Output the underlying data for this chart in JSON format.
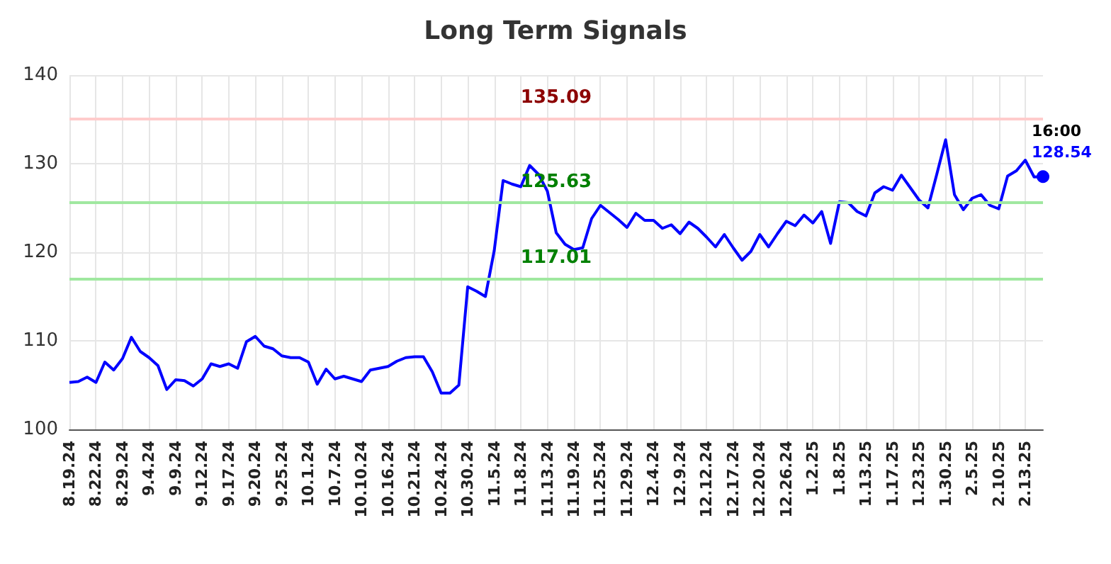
{
  "chart_data": {
    "type": "line",
    "title": "Long Term Signals",
    "categories": [
      "8.19.24",
      null,
      null,
      "8.22.24",
      null,
      null,
      "8.29.24",
      null,
      null,
      "9.4.24",
      null,
      null,
      "9.9.24",
      null,
      null,
      "9.12.24",
      null,
      null,
      "9.17.24",
      null,
      null,
      "9.20.24",
      null,
      null,
      "9.25.24",
      null,
      null,
      "10.1.24",
      null,
      null,
      "10.7.24",
      null,
      null,
      "10.10.24",
      null,
      null,
      "10.16.24",
      null,
      null,
      "10.21.24",
      null,
      null,
      "10.24.24",
      null,
      null,
      "10.30.24",
      null,
      null,
      "11.5.24",
      null,
      null,
      "11.8.24",
      null,
      null,
      "11.13.24",
      null,
      null,
      "11.19.24",
      null,
      null,
      "11.25.24",
      null,
      null,
      "11.29.24",
      null,
      null,
      "12.4.24",
      null,
      null,
      "12.9.24",
      null,
      null,
      "12.12.24",
      null,
      null,
      "12.17.24",
      null,
      null,
      "12.20.24",
      null,
      null,
      "12.26.24",
      null,
      null,
      "1.2.25",
      null,
      null,
      "1.8.25",
      null,
      null,
      "1.13.25",
      null,
      null,
      "1.17.25",
      null,
      null,
      "1.23.25",
      null,
      null,
      "1.30.25",
      null,
      null,
      "2.5.25",
      null,
      null,
      "2.10.25",
      null,
      null,
      "2.13.25",
      null,
      null
    ],
    "series": [
      {
        "color": "#0000ff",
        "values": [
          105.3,
          105.4,
          105.9,
          105.3,
          107.6,
          106.7,
          108.0,
          110.4,
          108.8,
          108.1,
          107.2,
          104.5,
          105.6,
          105.5,
          104.9,
          105.7,
          107.4,
          107.1,
          107.4,
          106.9,
          109.9,
          110.5,
          109.4,
          109.1,
          108.3,
          108.1,
          108.1,
          107.6,
          105.1,
          106.8,
          105.7,
          106.0,
          105.7,
          105.4,
          106.7,
          106.9,
          107.1,
          107.7,
          108.1,
          108.2,
          108.2,
          106.5,
          104.1,
          104.1,
          105.0,
          116.1,
          115.6,
          115.0,
          120.2,
          128.1,
          127.7,
          127.4,
          129.8,
          128.8,
          126.9,
          122.2,
          120.9,
          120.3,
          120.5,
          123.8,
          125.3,
          124.5,
          123.7,
          122.8,
          124.4,
          123.6,
          123.6,
          122.7,
          123.1,
          122.1,
          123.4,
          122.7,
          121.7,
          120.6,
          122.0,
          120.5,
          119.1,
          120.1,
          122.0,
          120.6,
          122.1,
          123.5,
          123.0,
          124.2,
          123.3,
          124.6,
          121.0,
          125.7,
          125.6,
          124.6,
          124.1,
          126.7,
          127.4,
          127.0,
          128.7,
          127.3,
          125.9,
          125.0,
          128.8,
          132.7,
          126.5,
          124.8,
          126.1,
          126.5,
          125.3,
          124.9,
          128.6,
          129.2,
          130.4,
          128.5,
          128.54
        ],
        "value_labels": [
          null,
          null,
          null,
          null,
          null,
          null,
          null,
          null,
          null,
          null,
          null,
          null,
          null,
          null,
          null,
          null,
          null,
          null,
          null,
          null,
          null,
          null,
          null,
          null,
          null,
          null,
          null,
          null,
          null,
          null,
          null,
          null,
          null,
          null,
          null,
          null,
          null,
          null,
          null,
          null,
          null,
          null,
          null,
          null,
          null,
          null,
          null,
          null,
          null,
          null,
          null,
          null,
          null,
          null,
          null,
          null,
          null,
          null,
          null,
          null,
          null,
          null,
          null,
          null,
          null,
          null,
          null,
          null,
          null,
          null,
          null,
          null,
          null,
          null,
          null,
          null,
          null,
          null,
          null,
          null,
          null,
          null,
          null,
          null,
          null,
          null,
          null,
          null,
          null,
          null,
          null,
          null,
          null,
          null,
          null,
          null,
          null,
          null,
          null,
          null,
          null,
          null,
          null,
          null,
          null,
          null,
          null,
          null,
          null,
          null,
          "128.54"
        ]
      }
    ],
    "annotations": [
      "16:00"
    ],
    "ylim": [
      100,
      140
    ],
    "yticks": [
      100,
      110,
      120,
      130,
      140
    ],
    "ref_lines": [
      {
        "axis": "y",
        "value": 135.09,
        "label": "135.09",
        "color": "#ffcccc"
      },
      {
        "axis": "y",
        "value": 125.63,
        "label": "125.63",
        "color": "#a0e8a0"
      },
      {
        "axis": "y",
        "value": 117.01,
        "label": "117.01",
        "color": "#a0e8a0"
      }
    ],
    "grid": true,
    "marker": "none",
    "line_style": "solid"
  }
}
